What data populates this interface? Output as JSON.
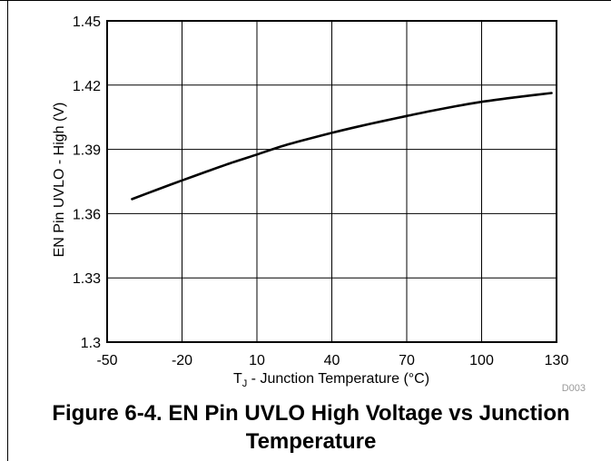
{
  "chart_data": {
    "type": "line",
    "xlabel": "T_J - Junction Temperature (°C)",
    "xlabel_parts": {
      "main": "T",
      "sub": "J",
      "rest": " - Junction Temperature (°C)"
    },
    "ylabel": "EN Pin UVLO - High (V)",
    "xlim": [
      -50,
      130
    ],
    "ylim": [
      1.3,
      1.45
    ],
    "x_ticks": [
      -50,
      -20,
      10,
      40,
      70,
      100,
      130
    ],
    "y_ticks": [
      1.3,
      1.33,
      1.36,
      1.39,
      1.42,
      1.45
    ],
    "x_tick_labels": [
      "-50",
      "-20",
      "10",
      "40",
      "70",
      "100",
      "130"
    ],
    "y_tick_labels": [
      "1.3",
      "1.33",
      "1.36",
      "1.39",
      "1.42",
      "1.45"
    ],
    "grid": true,
    "series": [
      {
        "x": [
          -40,
          -30,
          -20,
          -10,
          0,
          10,
          20,
          30,
          40,
          50,
          60,
          70,
          80,
          90,
          100,
          110,
          120,
          128
        ],
        "y": [
          1.3668,
          1.3712,
          1.3755,
          1.3797,
          1.3838,
          1.3876,
          1.3915,
          1.3947,
          1.3977,
          1.4005,
          1.4031,
          1.4056,
          1.408,
          1.4102,
          1.4122,
          1.4138,
          1.4152,
          1.4163
        ]
      }
    ],
    "figure_code": "D003"
  },
  "caption": {
    "line1": "Figure 6-4. EN Pin UVLO High Voltage vs Junction",
    "line2": "Temperature"
  },
  "colors": {
    "line": "#000000",
    "grid": "#000000",
    "code": "#9a9a9a"
  }
}
